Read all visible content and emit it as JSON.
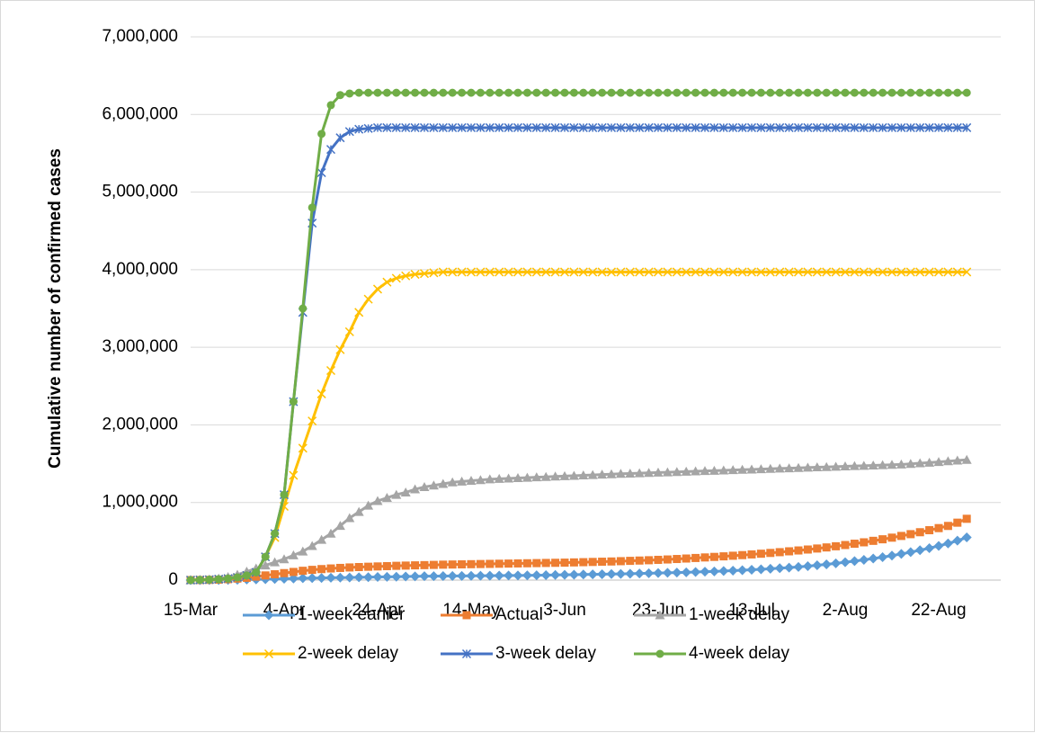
{
  "chart_data": {
    "type": "line",
    "y_label": "Cumulative number of confirmed cases",
    "categories": [
      "15-Mar",
      null,
      null,
      null,
      null,
      null,
      null,
      null,
      null,
      null,
      "4-Apr",
      null,
      null,
      null,
      null,
      null,
      null,
      null,
      null,
      null,
      "24-Apr",
      null,
      null,
      null,
      null,
      null,
      null,
      null,
      null,
      null,
      "14-May",
      null,
      null,
      null,
      null,
      null,
      null,
      null,
      null,
      null,
      "3-Jun",
      null,
      null,
      null,
      null,
      null,
      null,
      null,
      null,
      null,
      "23-Jun",
      null,
      null,
      null,
      null,
      null,
      null,
      null,
      null,
      null,
      "13-Jul",
      null,
      null,
      null,
      null,
      null,
      null,
      null,
      null,
      null,
      "2-Aug",
      null,
      null,
      null,
      null,
      null,
      null,
      null,
      null,
      null,
      "22-Aug",
      null,
      null,
      null
    ],
    "ylim": [
      0,
      7000000
    ],
    "yticks": [
      0,
      {
        "value": 1000000,
        "label": "1,000,000"
      },
      {
        "value": 2000000,
        "label": "2,000,000"
      },
      {
        "value": 3000000,
        "label": "3,000,000"
      },
      {
        "value": 4000000,
        "label": "4,000,000"
      },
      {
        "value": 5000000,
        "label": "5,000,000"
      },
      {
        "value": 6000000,
        "label": "6,000,000"
      },
      {
        "value": 7000000,
        "label": "7,000,000"
      }
    ],
    "grid": true,
    "legend": "bottom",
    "series": [
      {
        "name": "1-week earlier",
        "color": "#5b9bd5",
        "marker": "diamond",
        "values": [
          0,
          500,
          1000,
          2000,
          3000,
          5000,
          7000,
          9000,
          12000,
          15000,
          18000,
          21000,
          24000,
          26000,
          28000,
          30000,
          32000,
          34000,
          36000,
          38000,
          40000,
          42000,
          44000,
          46000,
          48000,
          50000,
          51000,
          52000,
          53000,
          54000,
          55000,
          56000,
          57000,
          58000,
          59000,
          60000,
          61000,
          62000,
          64000,
          66000,
          68000,
          70000,
          72000,
          74000,
          76000,
          78000,
          80000,
          82000,
          85000,
          88000,
          91000,
          94000,
          97000,
          100000,
          104000,
          108000,
          112000,
          117000,
          122000,
          127000,
          133000,
          139000,
          146000,
          153000,
          161000,
          170000,
          180000,
          191000,
          203000,
          216000,
          230000,
          245000,
          261000,
          278000,
          296000,
          316000,
          337000,
          360000,
          385000,
          412000,
          441000,
          472000,
          508000,
          550000
        ]
      },
      {
        "name": "Actual",
        "color": "#ed7d31",
        "marker": "square",
        "values": [
          0,
          1000,
          3000,
          6000,
          12000,
          20000,
          30000,
          45000,
          60000,
          75000,
          90000,
          105000,
          120000,
          132000,
          142000,
          150000,
          157000,
          163000,
          168000,
          172000,
          176000,
          180000,
          184000,
          187000,
          190000,
          193000,
          196000,
          199000,
          201000,
          203000,
          205000,
          207000,
          209000,
          211000,
          213000,
          215000,
          217000,
          219000,
          221000,
          223000,
          225000,
          228000,
          231000,
          234000,
          237000,
          240000,
          244000,
          248000,
          252000,
          256000,
          261000,
          266000,
          272000,
          278000,
          285000,
          292000,
          299000,
          306000,
          314000,
          322000,
          331000,
          340000,
          350000,
          360000,
          371000,
          382000,
          394000,
          407000,
          421000,
          436000,
          452000,
          469000,
          487000,
          506000,
          526000,
          547000,
          569000,
          592000,
          617000,
          643000,
          670000,
          698000,
          740000,
          790000
        ]
      },
      {
        "name": "1-week delay",
        "color": "#a5a5a5",
        "marker": "triangle",
        "values": [
          0,
          5000,
          10000,
          20000,
          40000,
          70000,
          110000,
          150000,
          190000,
          230000,
          270000,
          320000,
          370000,
          440000,
          520000,
          600000,
          700000,
          800000,
          880000,
          960000,
          1020000,
          1060000,
          1100000,
          1130000,
          1170000,
          1200000,
          1220000,
          1240000,
          1260000,
          1270000,
          1280000,
          1290000,
          1300000,
          1305000,
          1310000,
          1315000,
          1320000,
          1325000,
          1330000,
          1335000,
          1340000,
          1345000,
          1350000,
          1355000,
          1360000,
          1365000,
          1370000,
          1374000,
          1378000,
          1382000,
          1386000,
          1390000,
          1394000,
          1398000,
          1402000,
          1406000,
          1410000,
          1414000,
          1418000,
          1422000,
          1426000,
          1430000,
          1434000,
          1438000,
          1442000,
          1446000,
          1450000,
          1454000,
          1458000,
          1462000,
          1466000,
          1470000,
          1474000,
          1478000,
          1482000,
          1486000,
          1490000,
          1498000,
          1506000,
          1514000,
          1522000,
          1532000,
          1541000,
          1550000
        ]
      },
      {
        "name": "2-week delay",
        "color": "#ffc000",
        "marker": "x",
        "values": [
          0,
          3000,
          6000,
          12000,
          20000,
          35000,
          60000,
          100000,
          300000,
          550000,
          950000,
          1350000,
          1700000,
          2050000,
          2400000,
          2700000,
          2970000,
          3200000,
          3450000,
          3620000,
          3750000,
          3840000,
          3890000,
          3920000,
          3940000,
          3950000,
          3960000,
          3970000,
          3970000,
          3970000,
          3970000,
          3970000,
          3970000,
          3970000,
          3970000,
          3970000,
          3970000,
          3970000,
          3970000,
          3970000,
          3970000,
          3970000,
          3970000,
          3970000,
          3970000,
          3970000,
          3970000,
          3970000,
          3970000,
          3970000,
          3970000,
          3970000,
          3970000,
          3970000,
          3970000,
          3970000,
          3970000,
          3970000,
          3970000,
          3970000,
          3970000,
          3970000,
          3970000,
          3970000,
          3970000,
          3970000,
          3970000,
          3970000,
          3970000,
          3970000,
          3970000,
          3970000,
          3970000,
          3970000,
          3970000,
          3970000,
          3970000,
          3970000,
          3970000,
          3970000,
          3970000,
          3970000,
          3970000,
          3970000
        ]
      },
      {
        "name": "3-week delay",
        "color": "#4472c4",
        "marker": "star",
        "values": [
          0,
          3000,
          6000,
          12000,
          20000,
          35000,
          60000,
          100000,
          300000,
          600000,
          1100000,
          2300000,
          3450000,
          4600000,
          5250000,
          5550000,
          5700000,
          5780000,
          5810000,
          5820000,
          5830000,
          5830000,
          5830000,
          5830000,
          5830000,
          5830000,
          5830000,
          5830000,
          5830000,
          5830000,
          5830000,
          5830000,
          5830000,
          5830000,
          5830000,
          5830000,
          5830000,
          5830000,
          5830000,
          5830000,
          5830000,
          5830000,
          5830000,
          5830000,
          5830000,
          5830000,
          5830000,
          5830000,
          5830000,
          5830000,
          5830000,
          5830000,
          5830000,
          5830000,
          5830000,
          5830000,
          5830000,
          5830000,
          5830000,
          5830000,
          5830000,
          5830000,
          5830000,
          5830000,
          5830000,
          5830000,
          5830000,
          5830000,
          5830000,
          5830000,
          5830000,
          5830000,
          5830000,
          5830000,
          5830000,
          5830000,
          5830000,
          5830000,
          5830000,
          5830000,
          5830000,
          5830000,
          5830000,
          5830000
        ]
      },
      {
        "name": "4-week delay",
        "color": "#70ad47",
        "marker": "circle",
        "values": [
          0,
          3000,
          6000,
          12000,
          20000,
          35000,
          60000,
          100000,
          300000,
          600000,
          1100000,
          2300000,
          3500000,
          4800000,
          5750000,
          6120000,
          6250000,
          6270000,
          6280000,
          6280000,
          6280000,
          6280000,
          6280000,
          6280000,
          6280000,
          6280000,
          6280000,
          6280000,
          6280000,
          6280000,
          6280000,
          6280000,
          6280000,
          6280000,
          6280000,
          6280000,
          6280000,
          6280000,
          6280000,
          6280000,
          6280000,
          6280000,
          6280000,
          6280000,
          6280000,
          6280000,
          6280000,
          6280000,
          6280000,
          6280000,
          6280000,
          6280000,
          6280000,
          6280000,
          6280000,
          6280000,
          6280000,
          6280000,
          6280000,
          6280000,
          6280000,
          6280000,
          6280000,
          6280000,
          6280000,
          6280000,
          6280000,
          6280000,
          6280000,
          6280000,
          6280000,
          6280000,
          6280000,
          6280000,
          6280000,
          6280000,
          6280000,
          6280000,
          6280000,
          6280000,
          6280000,
          6280000,
          6280000,
          6280000
        ]
      }
    ]
  }
}
